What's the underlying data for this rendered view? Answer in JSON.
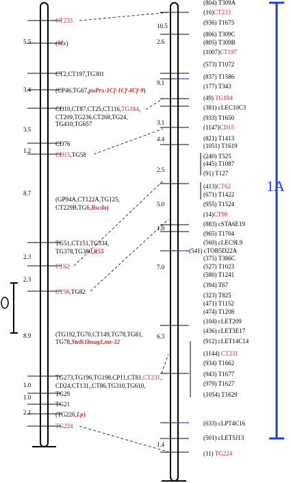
{
  "colors": {
    "black": "#000000",
    "red": "#dd2222",
    "blue": "#1b3fd6",
    "bg": "#ffffff"
  },
  "group_label": "1A",
  "left_intervals": [
    "5.5",
    "3.4",
    "3.5",
    "1.2",
    "8.7",
    "2.3",
    "2.3",
    "8.9",
    "1.0",
    "1.0",
    "2.1"
  ],
  "right_intervals": [
    "10.5",
    "2.6",
    "9.1",
    "3.1",
    "4.4",
    "2.5",
    "5.0",
    "1.8",
    "7.0",
    "6.3",
    "1.4"
  ],
  "left_markers": [
    {
      "text": "CT233",
      "parts": [
        {
          "t": "CT233",
          "s": "red"
        }
      ]
    },
    {
      "text": "(Mx)",
      "parts": [
        {
          "t": "(",
          "s": ""
        },
        {
          "t": "Mx",
          "s": "redi"
        },
        {
          "t": ")",
          "s": ""
        }
      ]
    },
    {
      "text": "CT2,CT197,TG301",
      "parts": [
        {
          "t": "CT2,CT197,TG301",
          "s": ""
        }
      ]
    },
    {
      "text": "(CP46,TG67,puPrx-1Cf-1Cf-4Cf-9)",
      "parts": [
        {
          "t": "(CP46,TG67,",
          "s": ""
        },
        {
          "t": "puPrx-1Cf-1Cf-4Cf-9",
          "s": "redi"
        },
        {
          "t": ")",
          "s": ""
        }
      ]
    },
    {
      "text": "CD10,CT87,CT25,CT116,TG184,",
      "parts": [
        {
          "t": "CD10,CT87,CT25,CT116,",
          "s": ""
        },
        {
          "t": "TG184",
          "s": "red"
        },
        {
          "t": ",",
          "s": ""
        }
      ]
    },
    {
      "text": "CT209,TG236,CT268,TG24,",
      "parts": [
        {
          "t": "CT209,TG236,CT268,TG24,",
          "s": ""
        }
      ]
    },
    {
      "text": "TG410,TG657",
      "parts": [
        {
          "t": "TG410,TG657",
          "s": ""
        }
      ]
    },
    {
      "text": "CD76",
      "parts": [
        {
          "t": "CD76",
          "s": ""
        }
      ]
    },
    {
      "text": "CD15,TG58",
      "parts": [
        {
          "t": "CD15",
          "s": "red"
        },
        {
          "t": ",TG58",
          "s": ""
        }
      ]
    },
    {
      "text": "(GP94A,CT122A,TG125,",
      "parts": [
        {
          "t": "(GP94A,CT122A,TG125,",
          "s": ""
        }
      ]
    },
    {
      "text": "CT229B,TG6,Bscda)",
      "parts": [
        {
          "t": "CT229B,TG6,",
          "s": ""
        },
        {
          "t": "Bscda",
          "s": "redi"
        },
        {
          "t": ")",
          "s": ""
        }
      ]
    },
    {
      "text": "TG51,CT151,TG334,",
      "parts": [
        {
          "t": "TG51,CT151,TG334,",
          "s": ""
        }
      ]
    },
    {
      "text": "TG378,TG380,R55",
      "parts": [
        {
          "t": "TG378,TG380,",
          "s": ""
        },
        {
          "t": "R55",
          "s": "redi"
        }
      ]
    },
    {
      "text": "CT62",
      "parts": [
        {
          "t": "CT62",
          "s": "red"
        }
      ]
    },
    {
      "text": "CT98,TG82",
      "parts": [
        {
          "t": "CT98",
          "s": "red"
        },
        {
          "t": ",TG82",
          "s": ""
        }
      ]
    },
    {
      "text": "(TG192,TG70,CT149,TG78,TG81,",
      "parts": [
        {
          "t": "(TG192,TG70,CT149,TG78,TG81,",
          "s": ""
        }
      ]
    },
    {
      "text": "TG78,Stelk1bnag1,ms-32",
      "parts": [
        {
          "t": "TG78,",
          "s": ""
        },
        {
          "t": "Stelk1bnag1,ms-32",
          "s": "redi"
        }
      ]
    },
    {
      "text": "TG273,TG196,TG198,CP11,CT81,CT231,",
      "parts": [
        {
          "t": "TG273,TG196,TG198,CP11,CT81,",
          "s": ""
        },
        {
          "t": "CT231",
          "s": "red"
        },
        {
          "t": ",",
          "s": ""
        }
      ]
    },
    {
      "text": "CD24,CT131,,CT86,TG310,TG610,",
      "parts": [
        {
          "t": "CD24,CT131,,CT86,TG310,TG610,",
          "s": ""
        }
      ]
    },
    {
      "text": "TG29",
      "parts": [
        {
          "t": "TG29",
          "s": ""
        }
      ]
    },
    {
      "text": "TG21",
      "parts": [
        {
          "t": "TG21",
          "s": ""
        }
      ]
    },
    {
      "text": "(TG226,Lp)",
      "parts": [
        {
          "t": "(TG226,",
          "s": ""
        },
        {
          "t": "Lp",
          "s": "redi"
        },
        {
          "t": ")",
          "s": ""
        }
      ]
    },
    {
      "text": "TG224",
      "parts": [
        {
          "t": "TG224",
          "s": "red"
        }
      ]
    }
  ],
  "right_markers": [
    {
      "text": "(804) T309A",
      "parts": [
        {
          "t": "(804) T309A",
          "s": ""
        }
      ]
    },
    {
      "text": "(10)CT233",
      "parts": [
        {
          "t": "(10)",
          "s": ""
        },
        {
          "t": "CT233",
          "s": "red"
        }
      ]
    },
    {
      "text": "(936) T1675",
      "parts": [
        {
          "t": "(936) T1675",
          "s": ""
        }
      ]
    },
    {
      "text": "(806) T309C",
      "parts": [
        {
          "t": "(806) T309C",
          "s": ""
        }
      ]
    },
    {
      "text": "(805) T309B",
      "parts": [
        {
          "t": "(805) T309B",
          "s": ""
        }
      ]
    },
    {
      "text": "(1007)CT197",
      "parts": [
        {
          "t": "(1007)",
          "s": ""
        },
        {
          "t": "CT197",
          "s": "red"
        }
      ]
    },
    {
      "text": "(573) T1072",
      "parts": [
        {
          "t": "(573) T1072",
          "s": ""
        }
      ]
    },
    {
      "text": "(837) T1586",
      "parts": [
        {
          "t": "(837) T1586",
          "s": ""
        }
      ]
    },
    {
      "text": "(177) T343",
      "parts": [
        {
          "t": "(177) T343",
          "s": ""
        }
      ]
    },
    {
      "text": "(49) TG184",
      "parts": [
        {
          "t": "(49) ",
          "s": ""
        },
        {
          "t": "TG184",
          "s": "red"
        }
      ]
    },
    {
      "text": "(381) cLEC10C3",
      "parts": [
        {
          "t": "(381) cLEC10C3",
          "s": ""
        }
      ]
    },
    {
      "text": "(933) T1650",
      "parts": [
        {
          "t": "(933) T1650",
          "s": ""
        }
      ]
    },
    {
      "text": "(1147)CD15",
      "parts": [
        {
          "t": "(1147)",
          "s": ""
        },
        {
          "t": "CD15",
          "s": "red"
        }
      ]
    },
    {
      "text": "(821) T1413",
      "parts": [
        {
          "t": "(821) T1413",
          "s": ""
        }
      ]
    },
    {
      "text": "(1051) T1619",
      "parts": [
        {
          "t": "(1051) T1619",
          "s": ""
        }
      ]
    },
    {
      "text": "(240) T525",
      "parts": [
        {
          "t": "(240) T525",
          "s": ""
        }
      ]
    },
    {
      "text": "(445) T1087",
      "parts": [
        {
          "t": "(445) T1087",
          "s": ""
        }
      ]
    },
    {
      "text": "(91) T127",
      "parts": [
        {
          "t": "(91) T127",
          "s": ""
        }
      ]
    },
    {
      "text": "(413)CT62",
      "parts": [
        {
          "t": "(413)",
          "s": ""
        },
        {
          "t": "CT62",
          "s": "red"
        }
      ]
    },
    {
      "text": "(671) T1422",
      "parts": [
        {
          "t": "(671) T1422",
          "s": ""
        }
      ]
    },
    {
      "text": "(955) T1524",
      "parts": [
        {
          "t": "(955) T1524",
          "s": ""
        }
      ]
    },
    {
      "text": "(14)CT98",
      "parts": [
        {
          "t": "(14)",
          "s": ""
        },
        {
          "t": "CT98",
          "s": "red"
        }
      ]
    },
    {
      "text": "(883) cSTA6E19",
      "parts": [
        {
          "t": "(883) cSTA6E19",
          "s": ""
        }
      ]
    },
    {
      "text": "(965) T1704",
      "parts": [
        {
          "t": "(965) T1704",
          "s": ""
        }
      ]
    },
    {
      "text": "(560) cLEC9L9",
      "parts": [
        {
          "t": "(560) cLEC9L9",
          "s": ""
        }
      ]
    },
    {
      "text": "(541) cTOB5D22A",
      "parts": [
        {
          "t": "(541) cTOB5D22A",
          "s": ""
        }
      ]
    },
    {
      "text": "(375) T386C",
      "parts": [
        {
          "t": "(375) T386C",
          "s": ""
        }
      ]
    },
    {
      "text": "(527) T1023",
      "parts": [
        {
          "t": "(527) T1023",
          "s": ""
        }
      ]
    },
    {
      "text": "(580) T1241",
      "parts": [
        {
          "t": "(580) T1241",
          "s": ""
        }
      ]
    },
    {
      "text": "(394) T67",
      "parts": [
        {
          "t": "(394) T67",
          "s": ""
        }
      ]
    },
    {
      "text": "(323) T825",
      "parts": [
        {
          "t": "(323) T825",
          "s": ""
        }
      ]
    },
    {
      "text": "(471) T1152",
      "parts": [
        {
          "t": "(471) T1152",
          "s": ""
        }
      ]
    },
    {
      "text": "(474) T1208",
      "parts": [
        {
          "t": "(474) T1208",
          "s": ""
        }
      ]
    },
    {
      "text": "(104) cLET209",
      "parts": [
        {
          "t": "(104) cLET209",
          "s": ""
        }
      ]
    },
    {
      "text": "(436) cLET3E17",
      "parts": [
        {
          "t": "(436) cLET3E17",
          "s": ""
        }
      ]
    },
    {
      "text": "(912) cLET14C14",
      "parts": [
        {
          "t": "(912) cLET14C14",
          "s": ""
        }
      ]
    },
    {
      "text": "(1144) CT231",
      "parts": [
        {
          "t": "(1144) ",
          "s": ""
        },
        {
          "t": "CT231",
          "s": "red"
        }
      ]
    },
    {
      "text": "(934) T1662",
      "parts": [
        {
          "t": "(934) T1662",
          "s": ""
        }
      ]
    },
    {
      "text": "(943) T1677",
      "parts": [
        {
          "t": "(943) T1677",
          "s": ""
        }
      ]
    },
    {
      "text": "(979) T1627",
      "parts": [
        {
          "t": "(979) T1627",
          "s": ""
        }
      ]
    },
    {
      "text": "(1054) T1629",
      "parts": [
        {
          "t": "(1054) T1629",
          "s": ""
        }
      ]
    },
    {
      "text": "(633) cLPT4C16",
      "parts": [
        {
          "t": "(633) cLPT4C16",
          "s": ""
        }
      ]
    },
    {
      "text": "(501) cLET5J13",
      "parts": [
        {
          "t": "(501) cLET5J13",
          "s": ""
        }
      ]
    },
    {
      "text": "(11) TG224",
      "parts": [
        {
          "t": "(11) ",
          "s": ""
        },
        {
          "t": "TG224",
          "s": "red"
        }
      ]
    }
  ]
}
